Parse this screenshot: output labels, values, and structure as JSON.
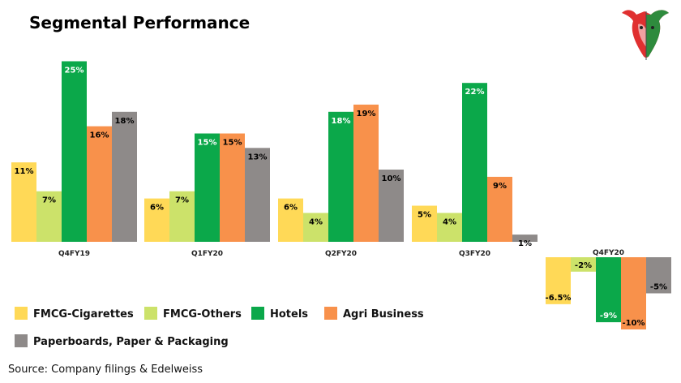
{
  "title": "Segmental Performance",
  "source": "Source: Company filings & Edelweiss",
  "logo": {
    "name": "bull-logo",
    "colors": [
      "#e03030",
      "#2e8b3d",
      "#4a4a4a"
    ]
  },
  "chart_data": {
    "type": "bar",
    "categories": [
      "Q4FY19",
      "Q1FY20",
      "Q2FY20",
      "Q3FY20",
      "Q4FY20"
    ],
    "series": [
      {
        "name": "FMCG-Cigarettes",
        "color": "#FFD957",
        "values": [
          11,
          6,
          6,
          5,
          -6.5
        ],
        "labels": [
          "11%",
          "6%",
          "6%",
          "5%",
          "-6.5%"
        ]
      },
      {
        "name": "FMCG-Others",
        "color": "#CCE26A",
        "values": [
          7,
          7,
          4,
          4,
          -2
        ],
        "labels": [
          "7%",
          "7%",
          "4%",
          "4%",
          "-2%"
        ]
      },
      {
        "name": "Hotels",
        "color": "#0BA84A",
        "values": [
          25,
          15,
          18,
          22,
          -9
        ],
        "labels": [
          "25%",
          "15%",
          "18%",
          "22%",
          "-9%"
        ]
      },
      {
        "name": "Agri Business",
        "color": "#F8914B",
        "values": [
          16,
          15,
          19,
          9,
          -10
        ],
        "labels": [
          "16%",
          "15%",
          "19%",
          "9%",
          "-10%"
        ]
      },
      {
        "name": "Paperboards, Paper & Packaging",
        "color": "#8E8A89",
        "values": [
          18,
          13,
          10,
          1,
          -5
        ],
        "labels": [
          "18%",
          "13%",
          "10%",
          "1%",
          "-5%"
        ]
      }
    ],
    "ylim": [
      -10,
      25
    ],
    "grid": false,
    "legend_position": "bottom-left"
  }
}
